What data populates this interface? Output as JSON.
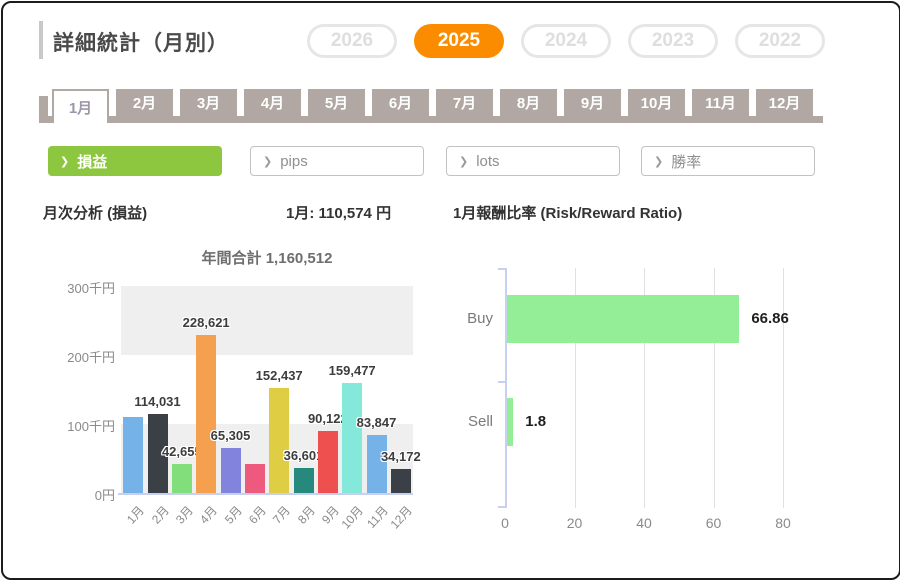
{
  "page": {
    "title": "詳細統計（月別）"
  },
  "year_tabs": {
    "items": [
      "2026",
      "2025",
      "2024",
      "2023",
      "2022"
    ],
    "active": "2025"
  },
  "month_tabs": {
    "items": [
      "1月",
      "2月",
      "3月",
      "4月",
      "5月",
      "6月",
      "7月",
      "8月",
      "9月",
      "10月",
      "11月",
      "12月"
    ],
    "active": "1月"
  },
  "filters": {
    "chevron": "❯",
    "items": [
      {
        "label": "損益",
        "active": true
      },
      {
        "label": "pips",
        "active": false
      },
      {
        "label": "lots",
        "active": false
      },
      {
        "label": "勝率",
        "active": false
      }
    ]
  },
  "section": {
    "left_title": "月次分析 (損益)",
    "month_value": "1月:  110,574 円",
    "right_title": "1月報酬比率 (Risk/Reward Ratio)"
  },
  "colors": {
    "accent_orange": "#fb8c00",
    "accent_green": "#8dc63f",
    "tab_taupe": "#b2a8a3",
    "axis_line": "#c7d0ee",
    "band_gray": "#efefef",
    "rr_bar_green": "#93ee97"
  },
  "chart_data": [
    {
      "type": "bar",
      "title": "年間合計 1,160,512",
      "categories": [
        "1月",
        "2月",
        "3月",
        "4月",
        "5月",
        "6月",
        "7月",
        "8月",
        "9月",
        "10月",
        "11月",
        "12月"
      ],
      "values": [
        110574,
        114031,
        42655,
        228621,
        65305,
        42670,
        152437,
        36601,
        90122,
        159477,
        83847,
        34172
      ],
      "bar_labels": [
        "",
        "114,031",
        "42,655",
        "228,621",
        "65,305",
        "",
        "152,437",
        "36,601",
        "90,122",
        "159,477",
        "83,847",
        "34,172"
      ],
      "bar_colors": [
        "#74b2e8",
        "#3b3f46",
        "#82de7a",
        "#f4a04e",
        "#8183dc",
        "#ee5a7e",
        "#dfcd44",
        "#27897e",
        "#ee5050",
        "#84e9db",
        "#74b2e8",
        "#3b3f46"
      ],
      "ylim": [
        0,
        300000
      ],
      "y_ticks": [
        {
          "value": 300000,
          "label": "300千円"
        },
        {
          "value": 200000,
          "label": "200千円"
        },
        {
          "value": 100000,
          "label": "100千円"
        },
        {
          "value": 0,
          "label": "0円"
        }
      ],
      "alternating_bands": true,
      "legend": "none"
    },
    {
      "type": "bar_horizontal",
      "title": "",
      "categories": [
        "Buy",
        "Sell"
      ],
      "values": [
        66.86,
        1.8
      ],
      "value_labels": [
        "66.86",
        "1.8"
      ],
      "xlim": [
        0,
        80
      ],
      "x_ticks": [
        "0",
        "20",
        "40",
        "60",
        "80"
      ],
      "grid": "vertical",
      "legend": "none"
    }
  ]
}
